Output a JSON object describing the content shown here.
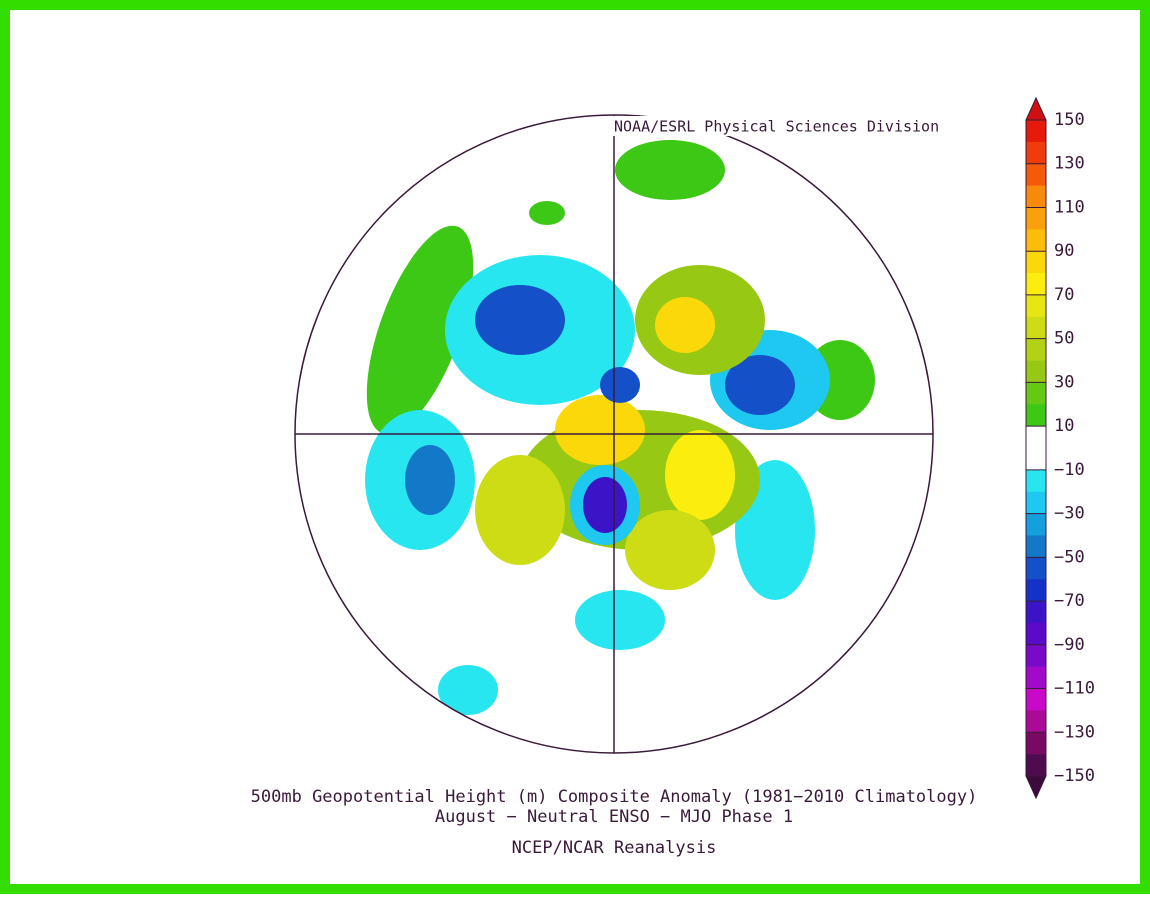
{
  "header": {
    "credit": "NOAA/ESRL Physical Sciences Division"
  },
  "caption": [
    "500mb Geopotential Height (m) Composite Anomaly (1981−2010 Climatology)",
    "August − Neutral ENSO − MJO Phase 1",
    "NCEP/NCAR Reanalysis"
  ],
  "colorbar": {
    "range": [
      -150,
      150
    ],
    "levels": [
      150,
      130,
      110,
      90,
      70,
      50,
      30,
      10,
      {
        "value": -10,
        "label": "−10"
      },
      {
        "value": -30,
        "label": "−30"
      },
      {
        "value": -50,
        "label": "−50"
      },
      {
        "value": -70,
        "label": "−70"
      },
      {
        "value": -90,
        "label": "−90"
      },
      {
        "value": -110,
        "label": "−110"
      },
      {
        "value": -130,
        "label": "−130"
      },
      {
        "value": -150,
        "label": "−150"
      }
    ],
    "colors": [
      "#e61a0a",
      "#f03c0a",
      "#f55a0a",
      "#f78a0a",
      "#f9a00a",
      "#fbbd0a",
      "#fbd80a",
      "#fbee0f",
      "#e6e614",
      "#cddc14",
      "#b4d214",
      "#96c814",
      "#64c814",
      "#3cc814",
      "#ffffff",
      "#ffffff",
      "#28e6f0",
      "#1ec8f0",
      "#14a0dc",
      "#1478c8",
      "#1450c8",
      "#1432c8",
      "#3c14c8",
      "#5a0ac8",
      "#780ac8",
      "#a00ac8",
      "#c80ac8",
      "#aa0a96",
      "#780a64",
      "#500a50"
    ],
    "over_color": "#d01010",
    "under_color": "#3c0a3c"
  }
}
